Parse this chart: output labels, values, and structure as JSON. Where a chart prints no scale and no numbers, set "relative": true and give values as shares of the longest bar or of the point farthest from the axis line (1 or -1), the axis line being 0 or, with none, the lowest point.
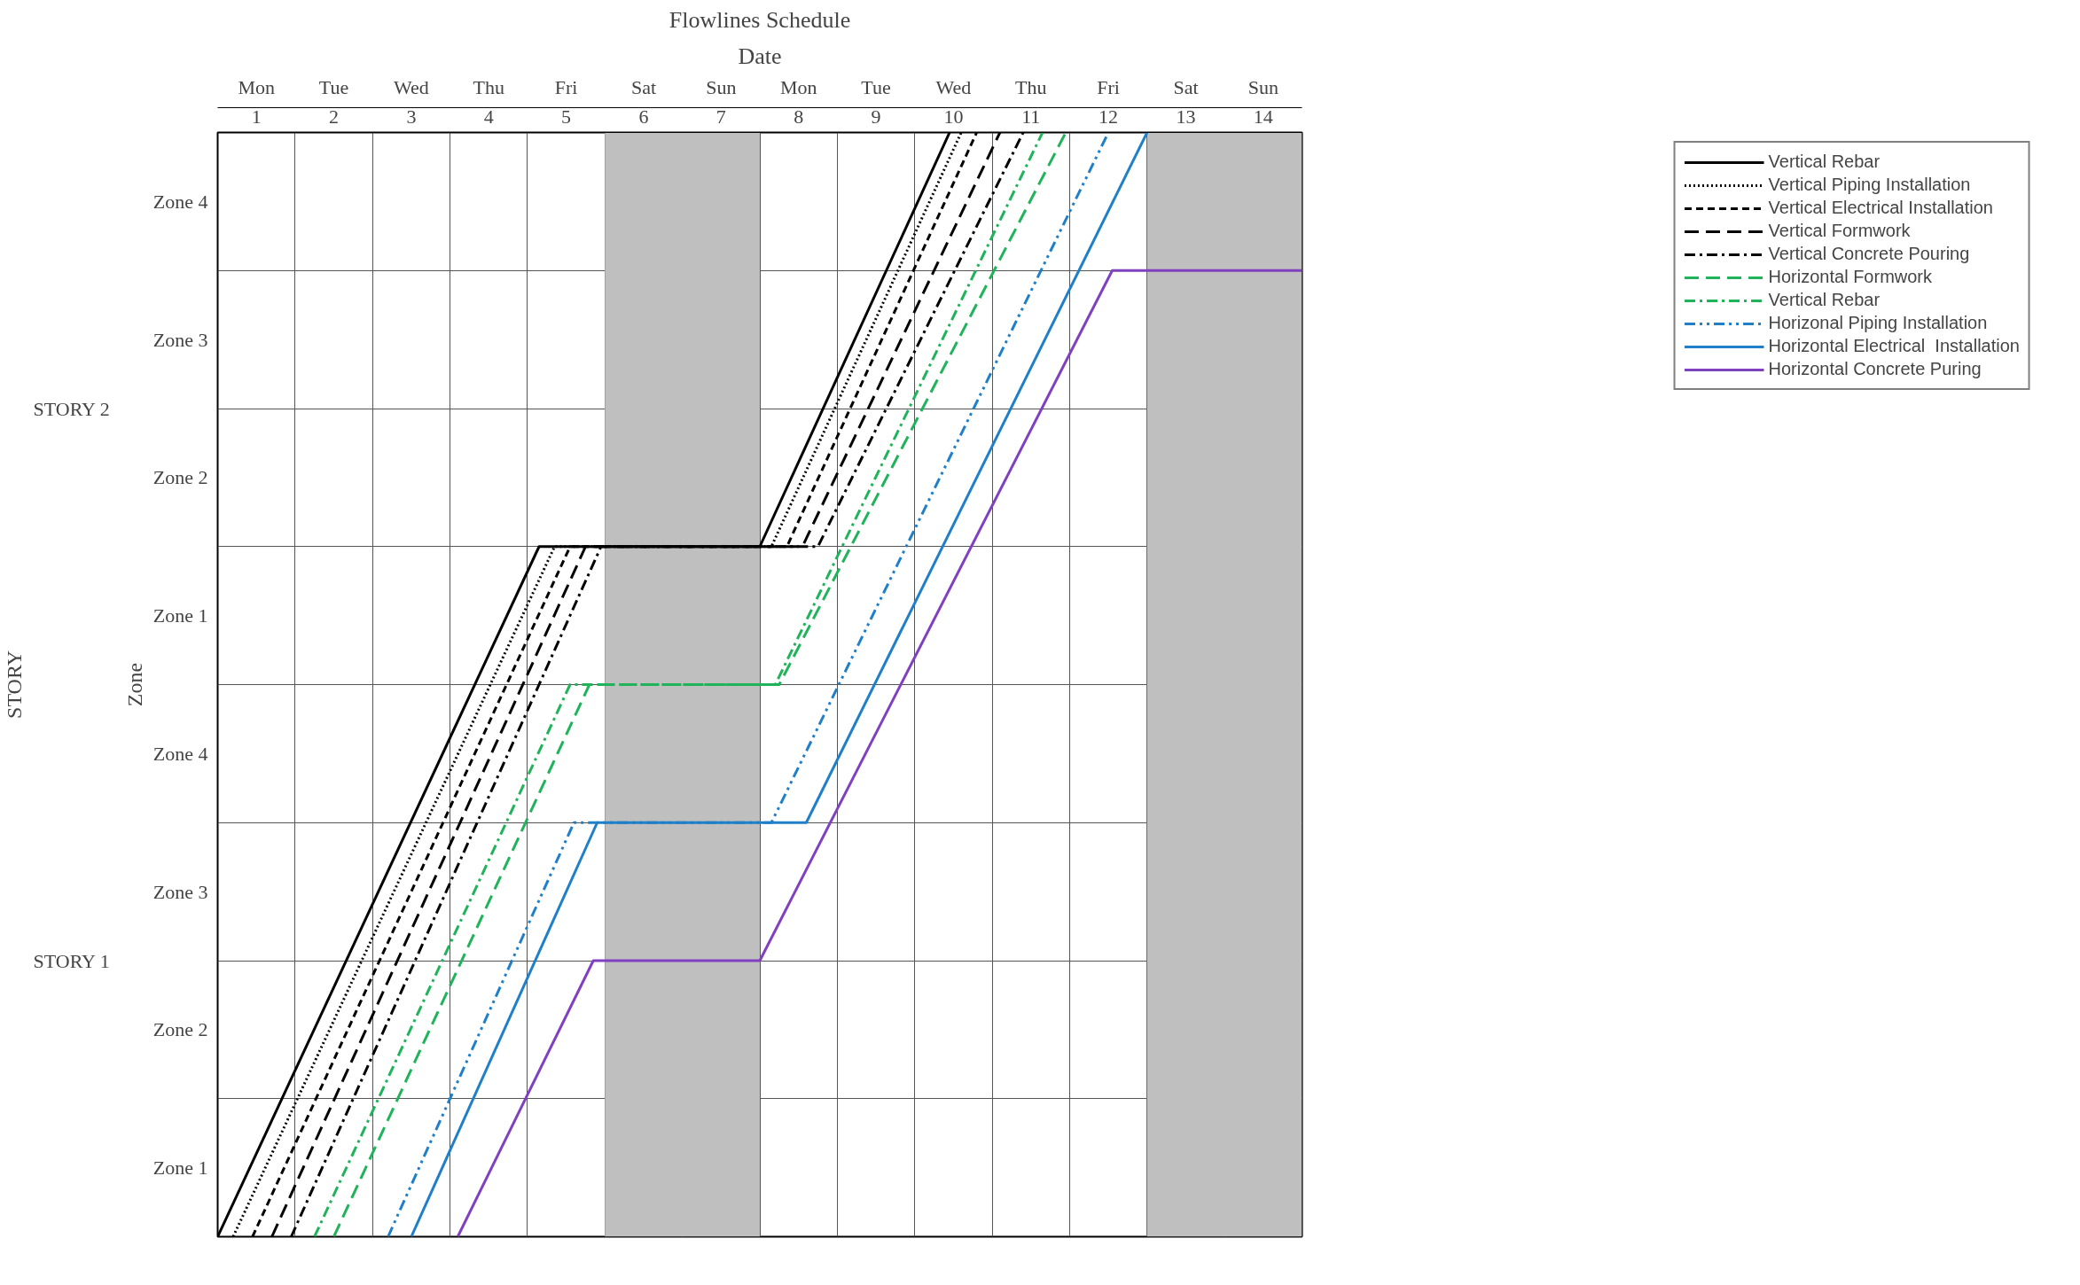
{
  "chart_data": {
    "type": "line",
    "title": "Flowlines Schedule",
    "subtitle": "Date",
    "ylabel": "Zone",
    "relative": true,
    "xlim": [
      0.5,
      14.5
    ],
    "xticks": [
      {
        "value": 0.5,
        "label": null
      },
      1,
      {
        "value": 1.5,
        "label": null
      },
      2,
      {
        "value": 2.5,
        "label": null
      },
      3,
      {
        "value": 3.5,
        "label": null
      },
      4,
      {
        "value": 4.5,
        "label": null
      },
      5,
      {
        "value": 5.5,
        "label": null
      },
      6,
      {
        "value": 6.5,
        "label": null
      },
      7,
      {
        "value": 7.5,
        "label": null
      },
      8,
      {
        "value": 8.5,
        "label": null
      },
      9,
      {
        "value": 9.5,
        "label": null
      },
      10,
      {
        "value": 10.5,
        "label": null
      },
      11,
      {
        "value": 11.5,
        "label": null
      },
      12,
      {
        "value": 12.5,
        "label": null
      },
      13,
      {
        "value": 13.5,
        "label": null
      },
      14,
      {
        "value": 14.5,
        "label": null
      }
    ],
    "y_categories": [
      "Zone 4",
      "Zone 3",
      "Zone 2",
      "Zone 1",
      "Zone 4",
      "Zone 3",
      "Zone 2",
      "Zone 1"
    ],
    "annotations": [
      "STORY",
      "STORY 1",
      "STORY 2",
      "Mon",
      "Tue",
      "Wed",
      "Thu",
      "Fri",
      "Sat",
      "Sun",
      "Mon",
      "Tue",
      "Wed",
      "Thu",
      "Fri",
      "Sat",
      "Sun"
    ],
    "bands": [
      {
        "axis": "x",
        "from": 5.5,
        "to": 7.5,
        "color": "#bfbfbf"
      },
      {
        "axis": "x",
        "from": 12.5,
        "to": 14.5,
        "color": "#bfbfbf"
      }
    ],
    "grid": true,
    "legend": "right",
    "marker": "none",
    "series": [
      {
        "name": "Vertical Rebar",
        "color": "#000000",
        "line_style": "solid",
        "x": [
          0.5,
          4.65,
          7.5,
          9.95
        ],
        "values": [
          0,
          0.625,
          0.625,
          1
        ]
      },
      {
        "name": "Vertical Piping Installation",
        "color": "#000000",
        "line_style": "dotted",
        "x": [
          0.7,
          4.85,
          7.65,
          10.1
        ],
        "values": [
          0,
          0.625,
          0.625,
          1
        ]
      },
      {
        "name": "Vertical Electrical Installation",
        "color": "#000000",
        "line_style": "dashed",
        "x": [
          0.95,
          5.05,
          7.85,
          10.3
        ],
        "values": [
          0,
          0.625,
          0.625,
          1
        ]
      },
      {
        "name": "Vertical Formwork",
        "color": "#000000",
        "line_style": "longdash",
        "x": [
          1.2,
          5.25,
          8.05,
          10.6
        ],
        "values": [
          0,
          0.625,
          0.625,
          1
        ]
      },
      {
        "name": "Vertical Concrete Pouring",
        "color": "#000000",
        "line_style": "dashdot",
        "x": [
          1.45,
          5.45,
          8.25,
          10.9
        ],
        "values": [
          0,
          0.625,
          0.625,
          1
        ]
      },
      {
        "name": "Horizontal Formwork",
        "color": "#1fb35a",
        "line_style": "longdash",
        "x": [
          2.0,
          5.3,
          7.75,
          11.45
        ],
        "values": [
          0,
          0.5,
          0.5,
          1
        ]
      },
      {
        "name": "Vertical Rebar",
        "color": "#1fb35a",
        "line_style": "dashdot",
        "x": [
          1.75,
          5.05,
          7.7,
          11.15
        ],
        "values": [
          0,
          0.5,
          0.5,
          1
        ]
      },
      {
        "name": "Horizonal Piping Installation",
        "color": "#1f7fc8",
        "line_style": "dashdotdot",
        "x": [
          2.7,
          5.1,
          7.65,
          12.0
        ],
        "values": [
          0,
          0.375,
          0.375,
          1
        ]
      },
      {
        "name": "Horizontal Electrical  Installation",
        "color": "#1f7fc8",
        "line_style": "solid",
        "x": [
          3.0,
          5.4,
          8.1,
          12.5
        ],
        "values": [
          0,
          0.375,
          0.375,
          1
        ]
      },
      {
        "name": "Horizontal Concrete Puring",
        "color": "#8040c0",
        "line_style": "solid",
        "x": [
          3.6,
          5.35,
          7.5,
          12.05,
          14.5
        ],
        "values": [
          0,
          0.25,
          0.25,
          0.875,
          0.875
        ]
      }
    ]
  }
}
